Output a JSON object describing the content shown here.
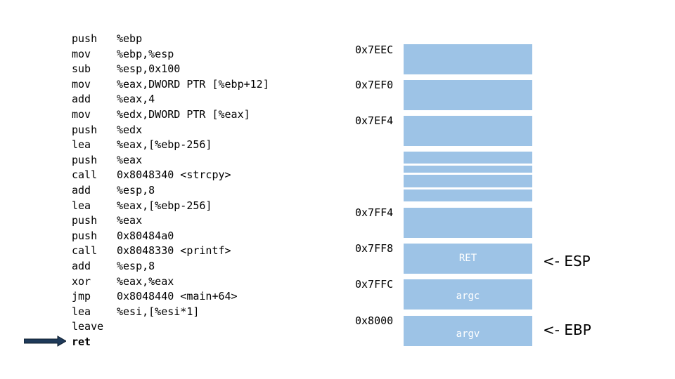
{
  "code": [
    {
      "op": "push",
      "arg": "%ebp"
    },
    {
      "op": "mov",
      "arg": "%ebp,%esp"
    },
    {
      "op": "sub",
      "arg": "%esp,0x100"
    },
    {
      "op": "mov",
      "arg": "%eax,DWORD PTR [%ebp+12]"
    },
    {
      "op": "add",
      "arg": "%eax,4"
    },
    {
      "op": "mov",
      "arg": "%edx,DWORD PTR [%eax]"
    },
    {
      "op": "push",
      "arg": "%edx"
    },
    {
      "op": "lea",
      "arg": "%eax,[%ebp-256]"
    },
    {
      "op": "push",
      "arg": "%eax"
    },
    {
      "op": "call",
      "arg": "0x8048340 <strcpy>"
    },
    {
      "op": "add",
      "arg": "%esp,8"
    },
    {
      "op": "lea",
      "arg": "%eax,[%ebp-256]"
    },
    {
      "op": "push",
      "arg": "%eax"
    },
    {
      "op": "push",
      "arg": "0x80484a0"
    },
    {
      "op": "call",
      "arg": "0x8048330 <printf>"
    },
    {
      "op": "add",
      "arg": "%esp,8"
    },
    {
      "op": "xor",
      "arg": "%eax,%eax"
    },
    {
      "op": "jmp",
      "arg": "0x8048440 <main+64>"
    },
    {
      "op": "lea",
      "arg": "%esi,[%esi*1]"
    },
    {
      "op": "leave",
      "arg": ""
    },
    {
      "op": "ret",
      "arg": ""
    }
  ],
  "current_instruction_index": 20,
  "stack": {
    "addresses": [
      "0x7EEC",
      "0x7EF0",
      "0x7EF4",
      "0x7FF4",
      "0x7FF8",
      "0x7FFC",
      "0x8000"
    ],
    "cells": [
      {
        "label": ""
      },
      {
        "label": ""
      },
      {
        "label": ""
      },
      {
        "label": ""
      },
      {
        "label": ""
      },
      {
        "label": ""
      },
      {
        "label": ""
      },
      {
        "label": ""
      },
      {
        "label": "RET"
      },
      {
        "label": "argc"
      },
      {
        "label": "argv"
      }
    ],
    "esp_label": "<- ESP",
    "ebp_label": "<- EBP"
  },
  "colors": {
    "cell": "#9dc3e6",
    "arrow": "#1f3a5a"
  }
}
